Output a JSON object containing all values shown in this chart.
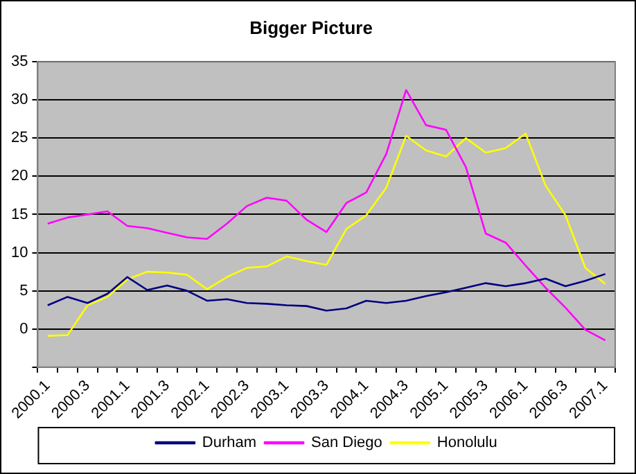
{
  "chart_data": {
    "type": "line",
    "title": "Bigger Picture",
    "categories": [
      "2000.1",
      null,
      "2000.3",
      null,
      "2001.1",
      null,
      "2001.3",
      null,
      "2002.1",
      null,
      "2002.3",
      null,
      "2003.1",
      null,
      "2003.3",
      null,
      "2004.1",
      null,
      "2004.3",
      null,
      "2005.1",
      null,
      "2005.3",
      null,
      "2006.1",
      null,
      "2006.3",
      null,
      "2007.1"
    ],
    "series": [
      {
        "name": "Durham",
        "color": "#000080",
        "values": [
          3.1,
          4.2,
          3.4,
          4.6,
          6.8,
          5.1,
          5.7,
          5.0,
          3.7,
          3.9,
          3.4,
          3.3,
          3.1,
          3.0,
          2.4,
          2.7,
          3.7,
          3.4,
          3.7,
          4.3,
          4.8,
          5.4,
          6.0,
          5.6,
          6.0,
          6.6,
          5.6,
          6.3,
          7.2
        ]
      },
      {
        "name": "San Diego",
        "color": "#ff00ff",
        "values": [
          13.8,
          14.6,
          15.0,
          15.4,
          13.5,
          13.2,
          12.6,
          12.0,
          11.8,
          13.8,
          16.1,
          17.2,
          16.8,
          14.3,
          12.7,
          16.5,
          17.9,
          22.9,
          31.3,
          26.7,
          26.1,
          21.2,
          12.5,
          11.3,
          8.3,
          5.4,
          2.8,
          -0.1,
          -1.5
        ]
      },
      {
        "name": "Honolulu",
        "color": "#ffff00",
        "values": [
          -0.9,
          -0.8,
          3.1,
          4.2,
          6.5,
          7.5,
          7.4,
          7.1,
          5.2,
          6.8,
          8.0,
          8.2,
          9.5,
          8.9,
          8.4,
          13.1,
          14.9,
          18.5,
          25.3,
          23.4,
          22.6,
          25.0,
          23.1,
          23.7,
          25.6,
          18.8,
          14.9,
          8.0,
          5.9
        ]
      }
    ],
    "ylim": [
      -5,
      35
    ],
    "yticks": [
      {
        "value": -5,
        "label": null
      },
      0,
      5,
      10,
      15,
      20,
      25,
      30,
      35
    ],
    "grid": "y",
    "legend": "bottom",
    "marker": "none",
    "line_style": "solid"
  }
}
